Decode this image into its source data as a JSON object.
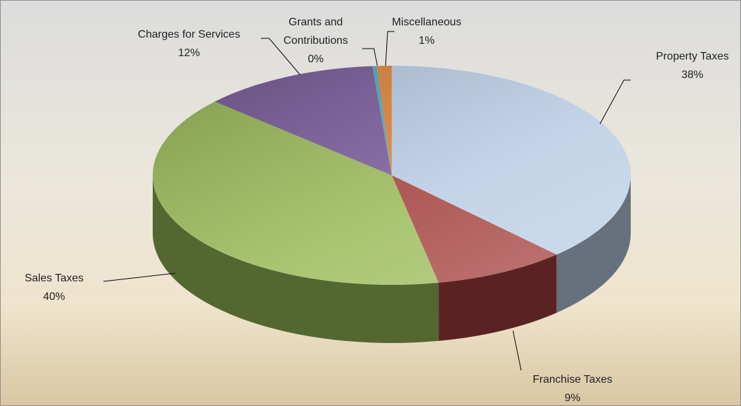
{
  "chart_data": {
    "type": "pie",
    "categories": [
      "Property Taxes",
      "Franchise Taxes",
      "Sales Taxes",
      "Charges for Services",
      "Grants and Contributions",
      "Miscellaneous"
    ],
    "values": [
      38,
      9,
      40,
      12,
      0.3,
      1
    ],
    "value_labels": [
      "38%",
      "9%",
      "40%",
      "12%",
      "0%",
      "1%"
    ],
    "colors": [
      "#b9cde4",
      "#a4403d",
      "#9bbb59",
      "#7a5c9a",
      "#4bacc6",
      "#e0843a"
    ]
  }
}
